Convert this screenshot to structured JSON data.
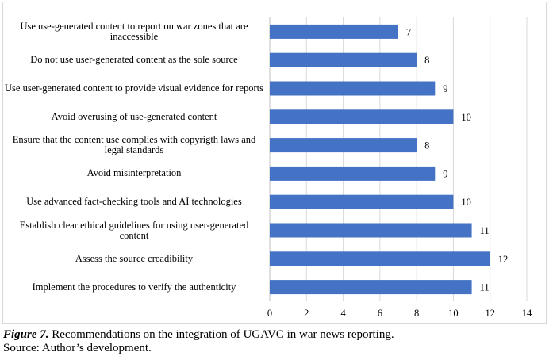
{
  "chart_data": {
    "type": "bar",
    "orientation": "horizontal",
    "categories": [
      "Use use-generated content to report on war zones that are inaccessible",
      "Do not use user-generated content as the sole source",
      "Use user-generated content to provide visual evidence for reports",
      "Avoid overusing of use-generated content",
      "Ensure that the content use complies with copyrigth laws and legal standards",
      "Avoid misinterpretation",
      "Use advanced fact-checking tools and AI technologies",
      "Establish clear ethical guidelines for using user-generated content",
      "Assess the source creadibility",
      "Implement the procedures to verify the authenticity"
    ],
    "values": [
      7,
      8,
      9,
      10,
      8,
      9,
      10,
      11,
      12,
      11
    ],
    "xlim": [
      0,
      14
    ],
    "xticks": [
      0,
      2,
      4,
      6,
      8,
      10,
      12,
      14
    ],
    "title": "",
    "xlabel": "",
    "ylabel": "",
    "bar_color": "#4472c4",
    "grid": "vertical"
  },
  "caption": {
    "figure_label": "Figure 7.",
    "text": " Recommendations on the integration of UGAVC in war news reporting.",
    "source": "Source: Author’s development."
  }
}
